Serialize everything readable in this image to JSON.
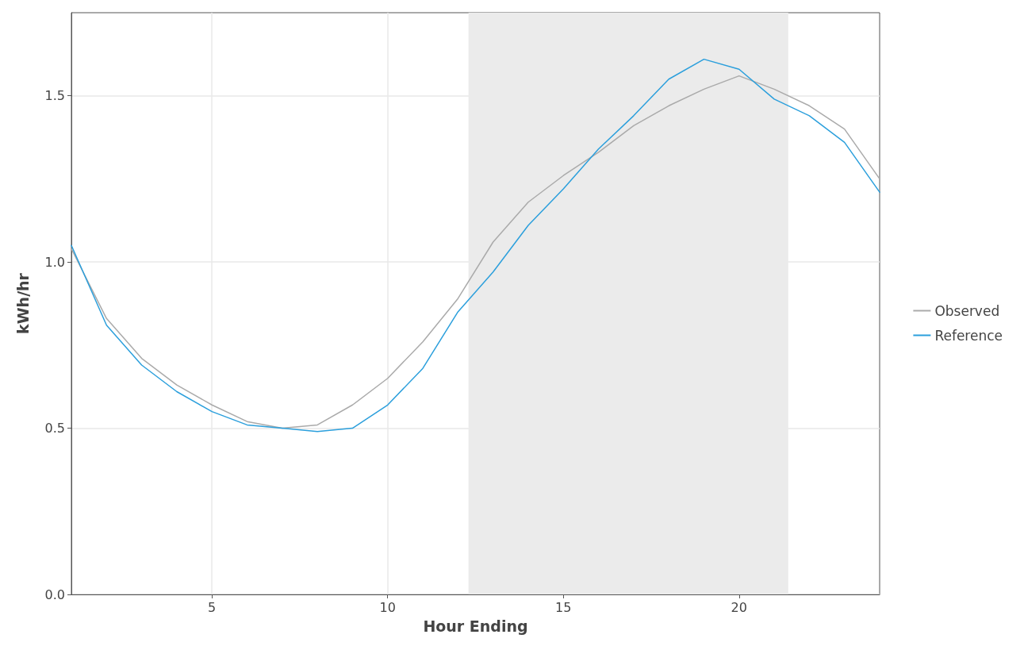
{
  "chart_data": {
    "type": "line",
    "xlabel": "Hour Ending",
    "ylabel": "kWh/hr",
    "x": [
      1,
      2,
      3,
      4,
      5,
      6,
      7,
      8,
      9,
      10,
      11,
      12,
      13,
      14,
      15,
      16,
      17,
      18,
      19,
      20,
      21,
      22,
      23,
      24
    ],
    "series": [
      {
        "name": "Observed",
        "color": "#aaaaaa",
        "values": [
          1.04,
          0.83,
          0.71,
          0.63,
          0.57,
          0.52,
          0.5,
          0.51,
          0.57,
          0.65,
          0.76,
          0.89,
          1.06,
          1.18,
          1.26,
          1.33,
          1.41,
          1.47,
          1.52,
          1.56,
          1.52,
          1.47,
          1.4,
          1.25
        ]
      },
      {
        "name": "Reference",
        "color": "#2b9fdc",
        "values": [
          1.05,
          0.81,
          0.69,
          0.61,
          0.55,
          0.51,
          0.5,
          0.49,
          0.5,
          0.57,
          0.68,
          0.85,
          0.97,
          1.11,
          1.22,
          1.34,
          1.44,
          1.55,
          1.61,
          1.58,
          1.49,
          1.44,
          1.36,
          1.21
        ]
      }
    ],
    "xlim": [
      1,
      24
    ],
    "xticks": [
      5,
      10,
      15,
      20
    ],
    "ylim": [
      0,
      1.75
    ],
    "yticks": [
      {
        "value": 0,
        "label": "0.0"
      },
      {
        "value": 0.5,
        "label": "0.5"
      },
      {
        "value": 1,
        "label": "1.0"
      },
      {
        "value": 1.5,
        "label": "1.5"
      }
    ],
    "bands": [
      {
        "axis": "x",
        "from": 12.3,
        "to": 21.4,
        "color": "#ebebeb"
      }
    ],
    "grid": true,
    "legend": "right",
    "marker": "none",
    "line_style": "solid"
  }
}
